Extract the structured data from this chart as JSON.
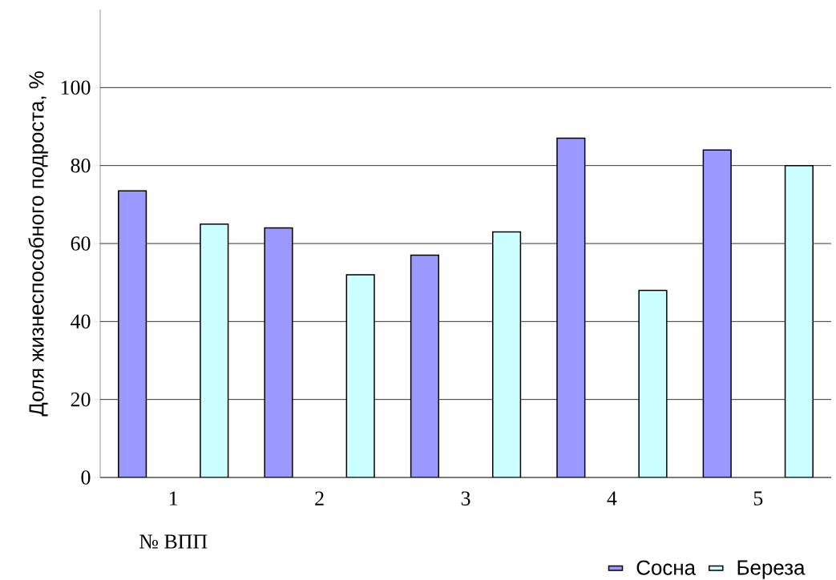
{
  "chart_data": {
    "type": "bar",
    "xlabel": "№ ВПП",
    "ylabel": "Доля жизнеспособного подроста, %",
    "categories": [
      "1",
      "2",
      "3",
      "4",
      "5"
    ],
    "series": [
      {
        "name": "Сосна",
        "color": "#9999ff",
        "values": [
          73.5,
          64,
          57,
          87,
          84
        ]
      },
      {
        "name": "Береза",
        "color": "#ccffff",
        "values": [
          65,
          52,
          63,
          48,
          80
        ]
      }
    ],
    "ylim": [
      0,
      120
    ],
    "yticks": [
      0,
      20,
      40,
      60,
      80,
      100
    ],
    "grid": "y",
    "legend": "bottom right"
  }
}
